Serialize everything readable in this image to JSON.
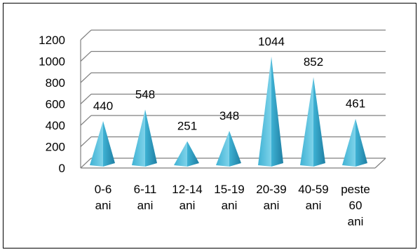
{
  "chart_data": {
    "type": "bar",
    "style": "3d-pyramid",
    "categories": [
      [
        "0-6",
        "ani"
      ],
      [
        "6-11",
        "ani"
      ],
      [
        "12-14",
        "ani"
      ],
      [
        "15-19",
        "ani"
      ],
      [
        "20-39",
        "ani"
      ],
      [
        "40-59",
        "ani"
      ],
      [
        "peste",
        "60",
        "ani"
      ]
    ],
    "values": [
      440,
      548,
      251,
      348,
      1044,
      852,
      461
    ],
    "data_labels": [
      "440",
      "548",
      "251",
      "348",
      "1044",
      "852",
      "461"
    ],
    "y_ticks": [
      "0",
      "200",
      "400",
      "600",
      "800",
      "1000",
      "1200"
    ],
    "ylim": [
      0,
      1200
    ],
    "grid": true,
    "legend": "none",
    "colors": {
      "pyramid_light": "#7fd3ea",
      "pyramid_mid": "#3fb2d4",
      "pyramid_dark": "#1f7fa3",
      "grid": "#7f7f7f",
      "frame": "#000000"
    }
  }
}
